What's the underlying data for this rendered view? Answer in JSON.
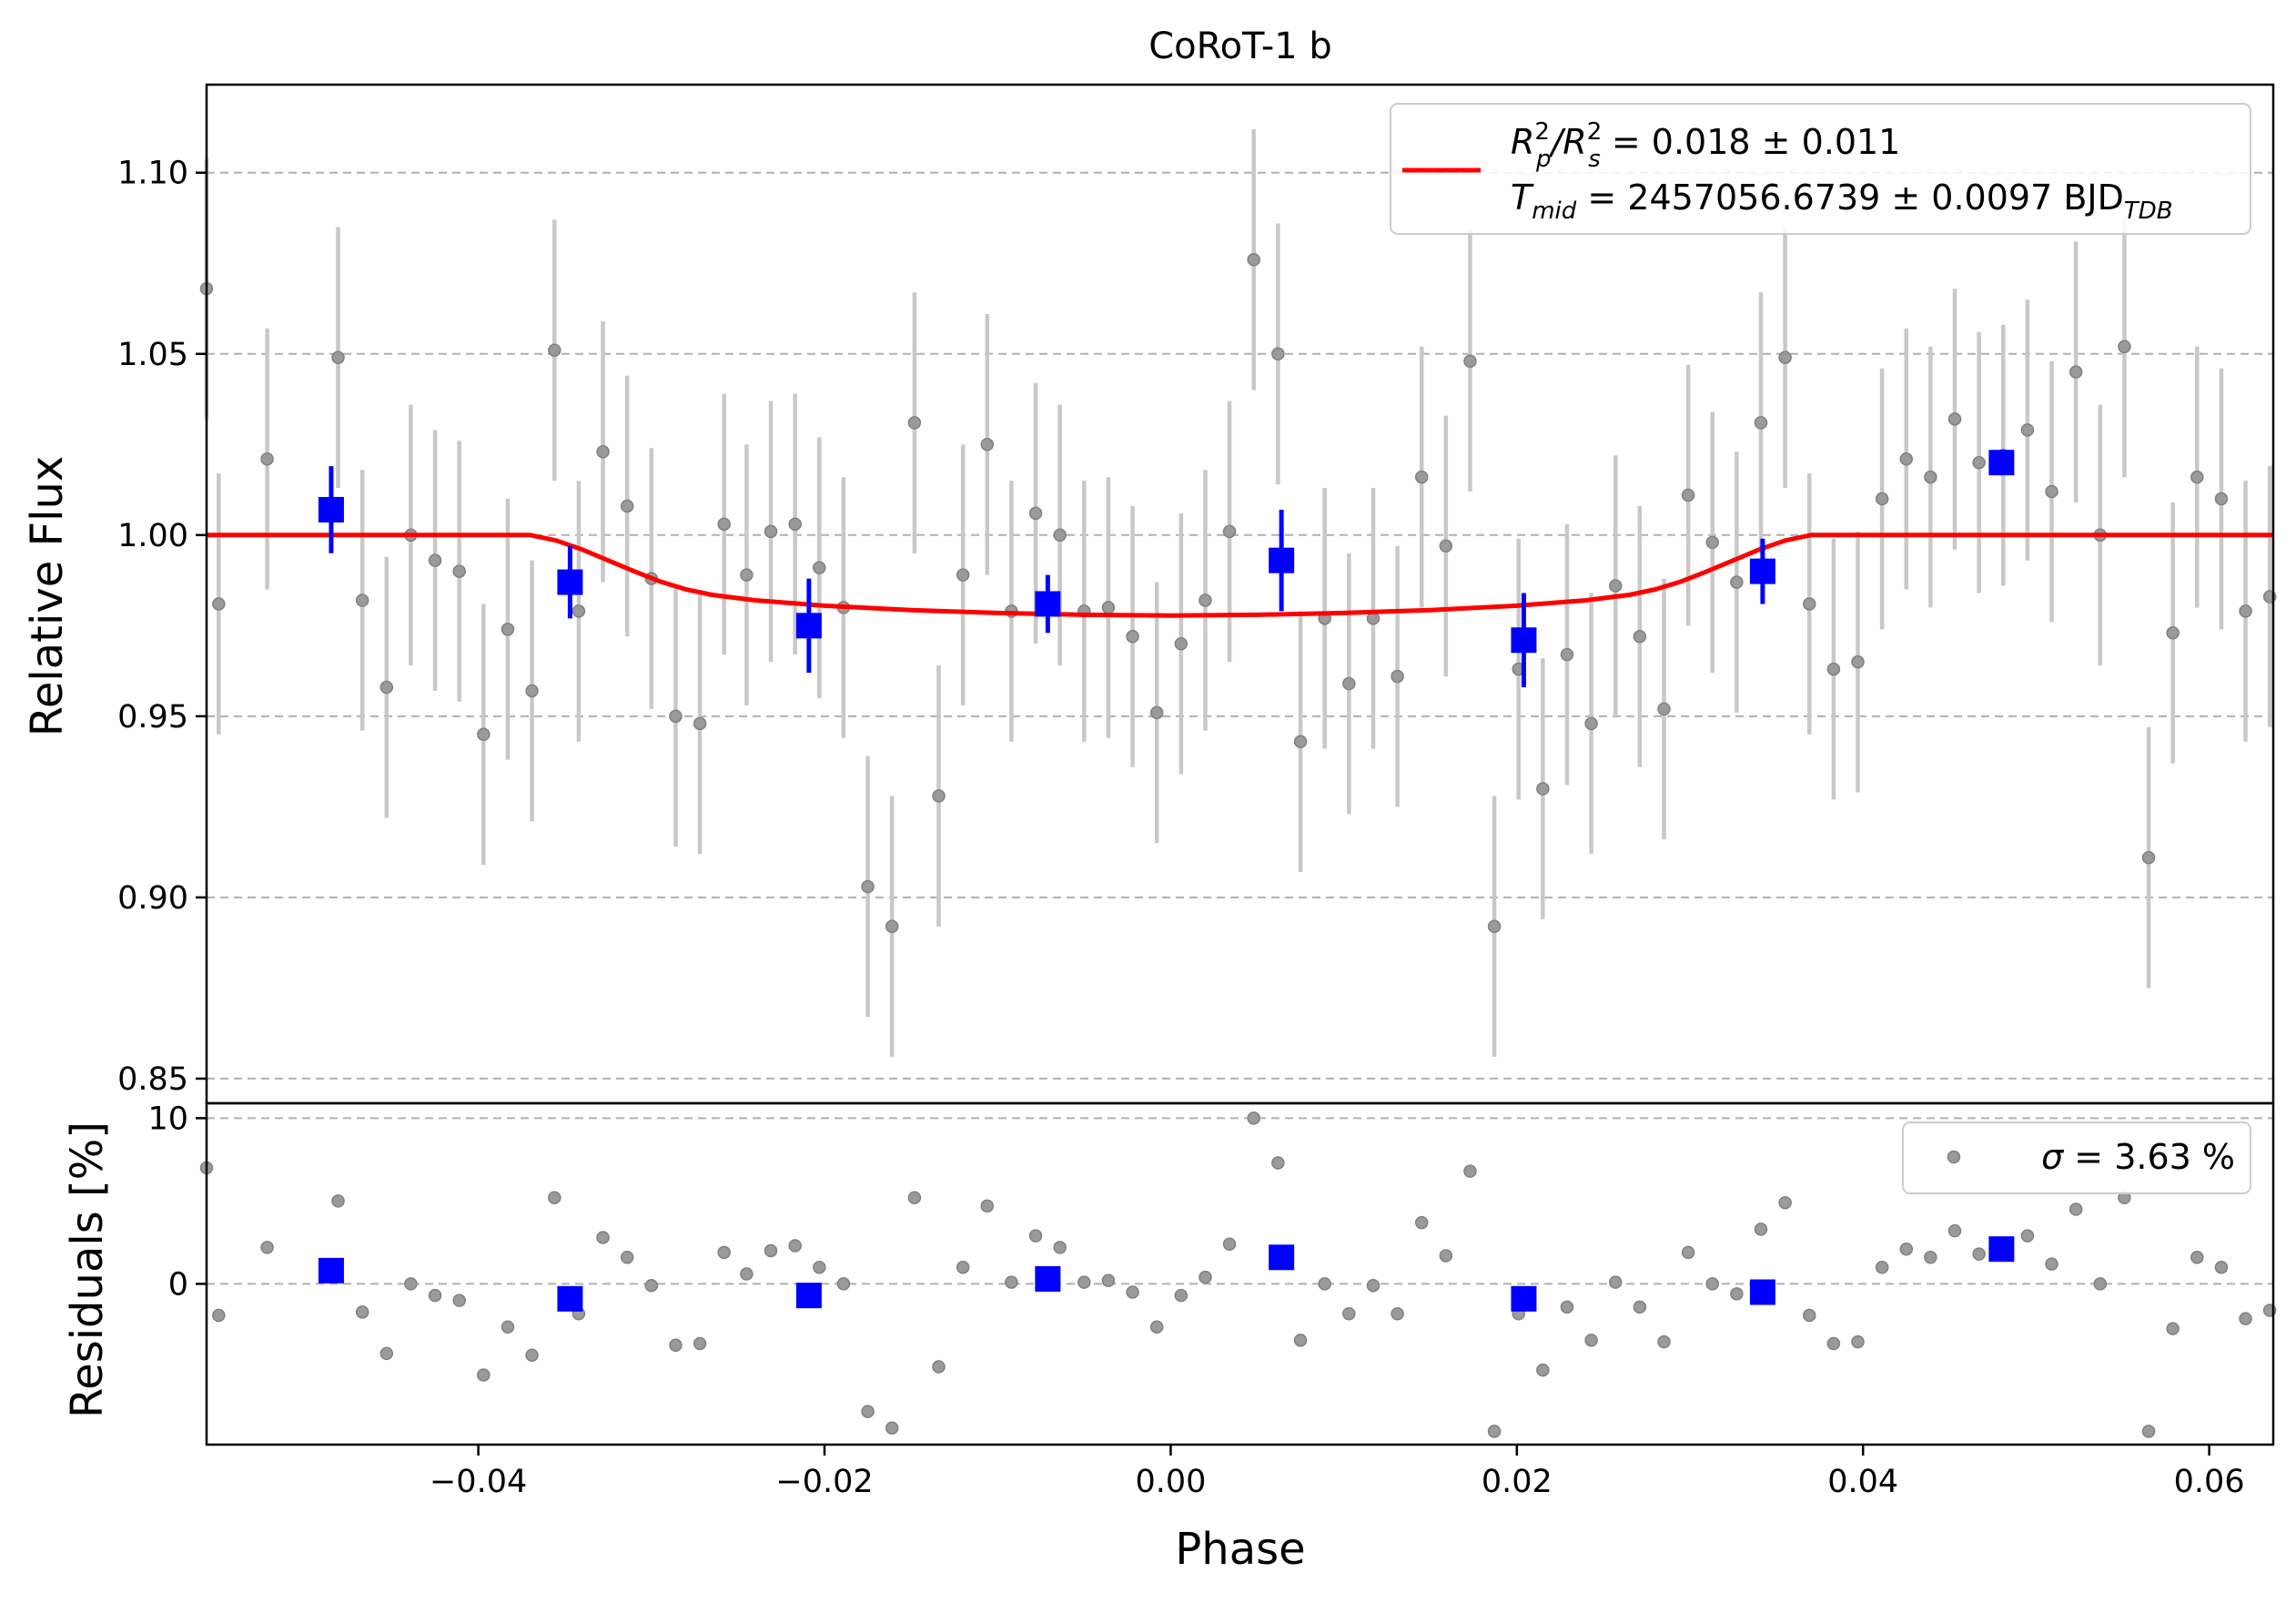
{
  "chart_data": {
    "type": "scatter",
    "title": "CoRoT-1 b",
    "colors": {
      "model": "#ff0000",
      "binned": "#0000ff",
      "raw": "#808080",
      "errorbar_raw": "#c8c8c8",
      "grid": "#b0b0b0"
    },
    "panels": {
      "top": {
        "ylabel": "Relative Flux",
        "xlim": [
          -0.0557,
          0.0637
        ],
        "ylim": [
          0.8432,
          1.1243
        ],
        "yticks": [
          "0.85",
          "0.90",
          "0.95",
          "1.00",
          "1.05",
          "1.10"
        ],
        "ytick_values": [
          0.85,
          0.9,
          0.95,
          1.0,
          1.05,
          1.1
        ],
        "grid": "horizontal dashed",
        "legend": {
          "placement": "top-right",
          "line1_prefix": "R",
          "line1_p": "p",
          "line1_2a": "2",
          "line1_s": "s",
          "line1_2b": "2",
          "line1_mid": "/R",
          "line1_rest": " = 0.018 ± 0.011",
          "line2_T": "T",
          "line2_sub": "mid",
          "line2_rest": " = 2457056.6739 ± 0.0097 BJD",
          "line2_tdb": "TDB"
        }
      },
      "bottom": {
        "ylabel": "Residuals [%]",
        "xlabel": "Phase",
        "ylim": [
          -9.7,
          10.9
        ],
        "yticks": [
          "0",
          "10"
        ],
        "ytick_values": [
          0,
          10
        ],
        "xticks": [
          "−0.04",
          "−0.02",
          "0.00",
          "0.02",
          "0.04",
          "0.06"
        ],
        "xtick_values": [
          -0.04,
          -0.02,
          0.0,
          0.02,
          0.04,
          0.06
        ],
        "legend": {
          "placement": "top-right",
          "sigma": "σ",
          "text": " = 3.63 %"
        }
      }
    },
    "series": [
      {
        "kind": "raw",
        "x": [
          -0.0557,
          -0.055,
          -0.0522,
          -0.0481,
          -0.0467,
          -0.0453,
          -0.0439,
          -0.0425,
          -0.0411,
          -0.0397,
          -0.0383,
          -0.0369,
          -0.0356,
          -0.0342,
          -0.0328,
          -0.0314,
          -0.03,
          -0.0286,
          -0.0272,
          -0.0258,
          -0.0245,
          -0.0231,
          -0.0217,
          -0.0203,
          -0.0189,
          -0.0175,
          -0.0161,
          -0.0148,
          -0.0134,
          -0.012,
          -0.0106,
          -0.0092,
          -0.0078,
          -0.0064,
          -0.005,
          -0.0036,
          -0.0022,
          -0.0008,
          0.0006,
          0.002,
          0.0034,
          0.0048,
          0.0062,
          0.0075,
          0.0089,
          0.0103,
          0.0117,
          0.0131,
          0.0145,
          0.0159,
          0.0173,
          0.0187,
          0.0201,
          0.0215,
          0.0229,
          0.0243,
          0.0257,
          0.0271,
          0.0285,
          0.0299,
          0.0313,
          0.0327,
          0.0341,
          0.0355,
          0.0369,
          0.0383,
          0.0397,
          0.0411,
          0.0425,
          0.0439,
          0.0453,
          0.0467,
          0.0481,
          0.0495,
          0.0509,
          0.0523,
          0.0537,
          0.0551,
          0.0565,
          0.0579,
          0.0593,
          0.0607,
          0.0621,
          0.0635
        ],
        "y": [
          1.068,
          0.981,
          1.021,
          1.049,
          0.982,
          0.958,
          1.0,
          0.993,
          0.99,
          0.945,
          0.974,
          0.957,
          1.051,
          0.979,
          1.023,
          1.008,
          0.988,
          0.95,
          0.948,
          1.003,
          0.989,
          1.001,
          1.003,
          0.991,
          0.98,
          0.903,
          0.892,
          1.031,
          0.928,
          0.989,
          1.025,
          0.979,
          1.006,
          1.0,
          0.979,
          0.98,
          0.972,
          0.951,
          0.97,
          0.982,
          1.001,
          1.076,
          1.05,
          0.943,
          0.977,
          0.959,
          0.977,
          0.961,
          1.016,
          0.997,
          1.048,
          0.892,
          0.963,
          0.93,
          0.967,
          0.948,
          0.986,
          0.972,
          0.952,
          1.011,
          0.998,
          0.987,
          1.031,
          1.049,
          0.981,
          0.963,
          0.965,
          1.01,
          1.021,
          1.016,
          1.032,
          1.02,
          1.022,
          1.029,
          1.012,
          1.045,
          1.0,
          1.052,
          0.911,
          0.973,
          1.016,
          1.01,
          0.979,
          0.983
        ],
        "yerr": 0.036,
        "residuals": [
          7.0,
          -1.9,
          2.2,
          5.0,
          -1.7,
          -4.2,
          0.0,
          -0.7,
          -1.0,
          -5.5,
          -2.6,
          -4.3,
          5.2,
          -1.8,
          2.8,
          1.6,
          -0.1,
          -3.7,
          -3.6,
          1.9,
          0.6,
          2.0,
          2.3,
          1.0,
          0.0,
          -7.7,
          -8.7,
          5.2,
          -5.0,
          1.0,
          4.7,
          0.1,
          2.9,
          2.2,
          0.1,
          0.2,
          -0.5,
          -2.6,
          -0.7,
          0.4,
          2.4,
          10.0,
          7.3,
          -3.4,
          0.0,
          -1.8,
          -0.1,
          -1.8,
          3.7,
          1.7,
          6.8,
          -8.9,
          -1.8,
          -5.2,
          -1.4,
          -3.4,
          0.1,
          -1.4,
          -3.5,
          1.9,
          0.0,
          -0.6,
          3.3,
          4.9,
          -1.9,
          -3.6,
          -3.5,
          1.0,
          2.1,
          1.6,
          3.2,
          1.8,
          2.0,
          2.9,
          1.2,
          4.5,
          0.0,
          5.2,
          -8.9,
          -2.7,
          1.6,
          1.0,
          -2.1,
          -1.6
        ]
      },
      {
        "kind": "binned",
        "x": [
          -0.0485,
          -0.0347,
          -0.0209,
          -0.0071,
          0.0064,
          0.0204,
          0.0342,
          0.048
        ],
        "y": [
          1.007,
          0.987,
          0.975,
          0.981,
          0.993,
          0.971,
          0.99,
          1.02
        ],
        "yerr": [
          0.012,
          0.01,
          0.013,
          0.008,
          0.014,
          0.013,
          0.009,
          0.002
        ],
        "residuals": [
          0.8,
          -0.9,
          -0.7,
          0.3,
          1.6,
          -0.9,
          -0.5,
          2.1
        ]
      },
      {
        "kind": "model",
        "x": [
          -0.0557,
          -0.037,
          -0.0355,
          -0.034,
          -0.0325,
          -0.031,
          -0.0295,
          -0.028,
          -0.0265,
          -0.024,
          -0.02,
          -0.015,
          -0.01,
          -0.005,
          0.0,
          0.005,
          0.01,
          0.015,
          0.02,
          0.024,
          0.0265,
          0.028,
          0.0295,
          0.031,
          0.0325,
          0.034,
          0.0355,
          0.037,
          0.0637
        ],
        "y": [
          1.0,
          1.0,
          0.9985,
          0.996,
          0.993,
          0.99,
          0.9872,
          0.985,
          0.9835,
          0.982,
          0.9805,
          0.9793,
          0.9785,
          0.978,
          0.9778,
          0.978,
          0.9785,
          0.9793,
          0.9805,
          0.982,
          0.9835,
          0.985,
          0.9872,
          0.99,
          0.993,
          0.996,
          0.9985,
          1.0,
          1.0
        ]
      }
    ]
  }
}
